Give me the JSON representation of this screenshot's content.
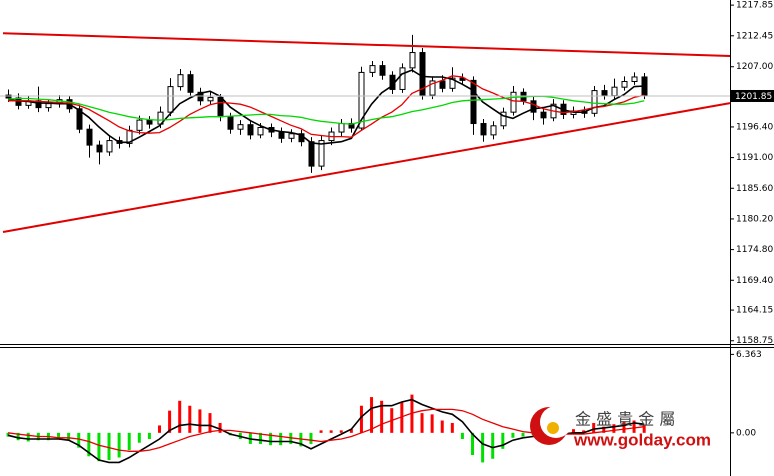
{
  "chart_data": [
    {
      "type": "candlestick",
      "xlim": [
        -0.5,
        71.5
      ],
      "ylim": [
        1158.0,
        1218.4
      ],
      "yticks": [
        1217.85,
        1212.45,
        {
          "value": 1207,
          "label": "1207.00"
        },
        {
          "value": 1196.4,
          "label": "1196.40"
        },
        {
          "value": 1191,
          "label": "1191.00"
        },
        {
          "value": 1185.6,
          "label": "1185.60"
        },
        {
          "value": 1180.2,
          "label": "1180.20"
        },
        {
          "value": 1174.8,
          "label": "1174.80"
        },
        {
          "value": 1169.4,
          "label": "1169.40"
        },
        1164.15,
        1158.75
      ],
      "last_price": 1201.85,
      "up_color": "#ffffff",
      "down_color": "#000000",
      "outline": "#000000",
      "open": [
        1202.0,
        1201.5,
        1200.2,
        1201.0,
        1199.8,
        1200.5,
        1201.2,
        1199.6,
        1196.0,
        1193.2,
        1192.0,
        1194.0,
        1193.5,
        1195.8,
        1197.6,
        1196.9,
        1199.0,
        1203.5,
        1205.6,
        1202.5,
        1201.0,
        1201.6,
        1198.2,
        1196.0,
        1196.8,
        1195.0,
        1196.3,
        1195.5,
        1194.4,
        1195.2,
        1193.8,
        1189.5,
        1194.0,
        1195.5,
        1197.0,
        1196.2,
        1206.0,
        1207.2,
        1205.5,
        1203.0,
        1206.8,
        1209.5,
        1202.0,
        1204.5,
        1203.2,
        1205.0,
        1204.6,
        1197.0,
        1195.0,
        1196.6,
        1199.0,
        1202.5,
        1201.0,
        1199.0,
        1198.0,
        1200.4,
        1198.6,
        1199.2,
        1198.8,
        1202.8,
        1201.9,
        1203.4,
        1204.4,
        1205.2
      ],
      "high": [
        1203.0,
        1202.3,
        1201.8,
        1203.5,
        1201.3,
        1202.0,
        1201.9,
        1200.3,
        1196.8,
        1194.0,
        1194.8,
        1194.7,
        1196.6,
        1198.4,
        1198.3,
        1200.0,
        1205.0,
        1206.6,
        1206.3,
        1203.3,
        1202.6,
        1202.2,
        1198.9,
        1197.6,
        1197.5,
        1197.1,
        1197.0,
        1196.3,
        1196.0,
        1195.9,
        1194.6,
        1194.8,
        1196.3,
        1197.8,
        1197.9,
        1207.0,
        1208.0,
        1208.0,
        1206.2,
        1207.6,
        1212.6,
        1210.3,
        1205.3,
        1205.5,
        1206.9,
        1205.8,
        1205.3,
        1197.8,
        1197.4,
        1199.8,
        1203.6,
        1203.2,
        1201.8,
        1199.8,
        1201.3,
        1201.1,
        1200.0,
        1200.0,
        1203.6,
        1203.8,
        1204.9,
        1205.3,
        1206.0,
        1205.9
      ],
      "low": [
        1200.8,
        1199.5,
        1199.6,
        1199.0,
        1199.1,
        1199.8,
        1198.9,
        1195.3,
        1191.0,
        1189.8,
        1191.3,
        1192.6,
        1192.8,
        1195.1,
        1196.1,
        1196.2,
        1198.3,
        1202.8,
        1201.8,
        1200.2,
        1200.3,
        1197.4,
        1195.2,
        1195.0,
        1194.2,
        1194.4,
        1194.6,
        1193.6,
        1193.7,
        1193.0,
        1188.3,
        1188.8,
        1193.2,
        1194.8,
        1195.4,
        1195.8,
        1205.2,
        1204.7,
        1202.2,
        1202.4,
        1206.0,
        1201.2,
        1201.3,
        1202.5,
        1202.6,
        1203.8,
        1195.0,
        1193.8,
        1194.2,
        1196.0,
        1198.4,
        1200.3,
        1197.6,
        1196.8,
        1197.4,
        1197.8,
        1197.9,
        1198.0,
        1198.2,
        1201.2,
        1201.3,
        1202.8,
        1203.8,
        1201.3
      ],
      "close": [
        1201.5,
        1200.2,
        1201.0,
        1199.8,
        1200.5,
        1201.2,
        1199.6,
        1196.0,
        1193.2,
        1192.0,
        1194.0,
        1193.5,
        1195.8,
        1197.6,
        1196.9,
        1199.0,
        1203.5,
        1205.6,
        1202.5,
        1201.0,
        1201.6,
        1198.2,
        1196.0,
        1196.8,
        1195.0,
        1196.3,
        1195.5,
        1194.4,
        1195.2,
        1193.8,
        1189.5,
        1194.0,
        1195.5,
        1197.0,
        1196.2,
        1206.0,
        1207.2,
        1205.5,
        1203.0,
        1206.8,
        1209.5,
        1202.0,
        1204.5,
        1203.2,
        1205.0,
        1204.6,
        1197.0,
        1195.0,
        1196.6,
        1199.0,
        1202.5,
        1201.0,
        1199.0,
        1198.0,
        1200.4,
        1198.6,
        1199.2,
        1198.8,
        1202.8,
        1201.9,
        1203.4,
        1204.4,
        1205.2,
        1201.85
      ],
      "series": [
        {
          "color": "#000000",
          "values": [
            1201.2,
            1201.0,
            1200.9,
            1200.6,
            1200.6,
            1200.5,
            1200.5,
            1199.4,
            1198.1,
            1196.4,
            1194.9,
            1193.7,
            1193.7,
            1194.6,
            1195.6,
            1196.6,
            1198.6,
            1200.5,
            1201.5,
            1202.3,
            1202.7,
            1201.8,
            1199.9,
            1198.7,
            1197.5,
            1196.6,
            1195.9,
            1195.6,
            1195.4,
            1195.0,
            1193.6,
            1193.4,
            1193.6,
            1193.8,
            1194.4,
            1197.7,
            1200.4,
            1202.4,
            1203.6,
            1205.7,
            1206.4,
            1205.3,
            1205.2,
            1205.2,
            1204.8,
            1203.9,
            1202.9,
            1200.8,
            1199.6,
            1198.4,
            1197.9,
            1198.8,
            1199.6,
            1199.8,
            1200.2,
            1199.4,
            1199.0,
            1199.0,
            1199.8,
            1200.1,
            1201.2,
            1202.1,
            1203.5,
            1203.6
          ]
        },
        {
          "color": "#e80000",
          "values": [
            1201.0,
            1201.0,
            1201.0,
            1200.9,
            1200.8,
            1200.7,
            1200.6,
            1200.2,
            1199.5,
            1198.5,
            1197.5,
            1196.4,
            1195.7,
            1195.4,
            1195.3,
            1195.4,
            1196.3,
            1197.4,
            1198.6,
            1199.5,
            1200.3,
            1200.7,
            1200.6,
            1200.4,
            1199.9,
            1199.1,
            1198.3,
            1197.5,
            1196.7,
            1196.1,
            1195.1,
            1194.9,
            1194.7,
            1194.7,
            1194.6,
            1195.8,
            1196.9,
            1198.1,
            1199.0,
            1200.3,
            1202.3,
            1203.1,
            1204.0,
            1204.6,
            1205.4,
            1205.2,
            1204.2,
            1203.1,
            1202.4,
            1201.6,
            1201.0,
            1200.9,
            1200.4,
            1199.6,
            1199.2,
            1198.9,
            1199.1,
            1199.4,
            1199.8,
            1200.0,
            1200.4,
            1200.8,
            1201.6,
            1202.0
          ]
        },
        {
          "color": "#00d800",
          "values": [
            1201.3,
            1201.4,
            1201.4,
            1201.3,
            1201.2,
            1201.0,
            1200.8,
            1200.5,
            1200.0,
            1199.5,
            1199.0,
            1198.6,
            1198.2,
            1197.9,
            1197.7,
            1197.6,
            1197.7,
            1197.9,
            1198.0,
            1198.1,
            1198.2,
            1198.2,
            1198.3,
            1198.4,
            1198.5,
            1198.6,
            1198.6,
            1198.4,
            1198.3,
            1198.1,
            1197.7,
            1197.4,
            1197.2,
            1197.0,
            1196.9,
            1197.3,
            1197.7,
            1198.0,
            1198.2,
            1198.6,
            1199.1,
            1199.4,
            1199.8,
            1200.2,
            1200.7,
            1201.0,
            1201.1,
            1201.2,
            1201.3,
            1201.4,
            1201.6,
            1201.7,
            1201.8,
            1201.8,
            1201.6,
            1201.3,
            1201.0,
            1200.8,
            1200.6,
            1200.5,
            1200.4,
            1200.4,
            1200.6,
            1201.0
          ]
        }
      ],
      "trendlines": [
        {
          "color": "#e00000",
          "x": [
            -0.5,
            71.5
          ],
          "values": [
            1212.9,
            1208.9
          ]
        },
        {
          "color": "#e00000",
          "x": [
            -0.5,
            71.5
          ],
          "values": [
            1177.9,
            1200.6
          ]
        }
      ]
    },
    {
      "type": "bar",
      "xlim": [
        -0.5,
        71.5
      ],
      "ylim": [
        -3.5,
        6.8
      ],
      "yticks": [
        6.363,
        {
          "value": 0,
          "label": "0.00"
        }
      ],
      "up_color": "#ff0000",
      "down_color": "#00e000",
      "values": [
        -0.3,
        -0.6,
        -0.7,
        -0.6,
        -0.6,
        -0.5,
        -0.6,
        -1.2,
        -1.9,
        -2.3,
        -2.2,
        -2.0,
        -1.4,
        -0.8,
        -0.5,
        0.6,
        1.8,
        2.6,
        2.2,
        1.9,
        1.6,
        0.8,
        -0.2,
        -0.5,
        -0.9,
        -0.9,
        -1.0,
        -1.0,
        -0.9,
        -1.1,
        -0.9,
        0.2,
        0.2,
        0.2,
        0.3,
        2.2,
        2.9,
        2.6,
        2.0,
        2.5,
        3.1,
        1.6,
        1.5,
        1.0,
        0.8,
        -0.5,
        -1.8,
        -2.4,
        -2.1,
        -1.3,
        -0.4,
        -0.3,
        -0.2,
        -0.4,
        0.2,
        -0.1,
        0.3,
        0.2,
        0.8,
        0.5,
        0.7,
        0.9,
        1.0,
        0.6
      ],
      "series": [
        {
          "color": "#000000",
          "values": [
            -0.2,
            -0.4,
            -0.5,
            -0.5,
            -0.5,
            -0.5,
            -0.6,
            -1.0,
            -1.6,
            -2.2,
            -2.4,
            -2.4,
            -2.0,
            -1.5,
            -1.0,
            -0.5,
            0.2,
            0.6,
            0.7,
            0.6,
            0.6,
            0.3,
            -0.1,
            -0.3,
            -0.5,
            -0.6,
            -0.7,
            -0.7,
            -0.7,
            -0.9,
            -1.3,
            -0.9,
            -0.5,
            -0.1,
            0.3,
            1.3,
            2.0,
            2.2,
            2.2,
            2.5,
            2.7,
            2.3,
            2.0,
            1.7,
            1.5,
            0.9,
            -0.1,
            -0.9,
            -1.2,
            -1.0,
            -0.6,
            -0.4,
            -0.3,
            -0.3,
            -0.1,
            -0.1,
            0.0,
            0.0,
            0.3,
            0.4,
            0.5,
            0.6,
            0.8,
            0.7
          ]
        },
        {
          "color": "#e80000",
          "values": [
            0.0,
            -0.1,
            -0.2,
            -0.3,
            -0.3,
            -0.4,
            -0.4,
            -0.5,
            -0.7,
            -1.0,
            -1.2,
            -1.4,
            -1.5,
            -1.5,
            -1.4,
            -1.2,
            -0.9,
            -0.6,
            -0.3,
            -0.1,
            0.1,
            0.2,
            0.2,
            0.1,
            0.0,
            -0.1,
            -0.2,
            -0.3,
            -0.4,
            -0.5,
            -0.6,
            -0.7,
            -0.6,
            -0.5,
            -0.3,
            0.0,
            0.3,
            0.7,
            1.0,
            1.3,
            1.6,
            1.8,
            1.9,
            1.9,
            1.9,
            1.8,
            1.5,
            1.1,
            0.8,
            0.5,
            0.3,
            0.1,
            0.0,
            -0.1,
            -0.1,
            -0.1,
            -0.1,
            -0.1,
            0.0,
            0.1,
            0.2,
            0.3,
            0.4,
            0.5
          ]
        }
      ]
    }
  ],
  "watermark": {
    "name": "金 盛 貴 金 屬",
    "url": "www.golday.com"
  }
}
